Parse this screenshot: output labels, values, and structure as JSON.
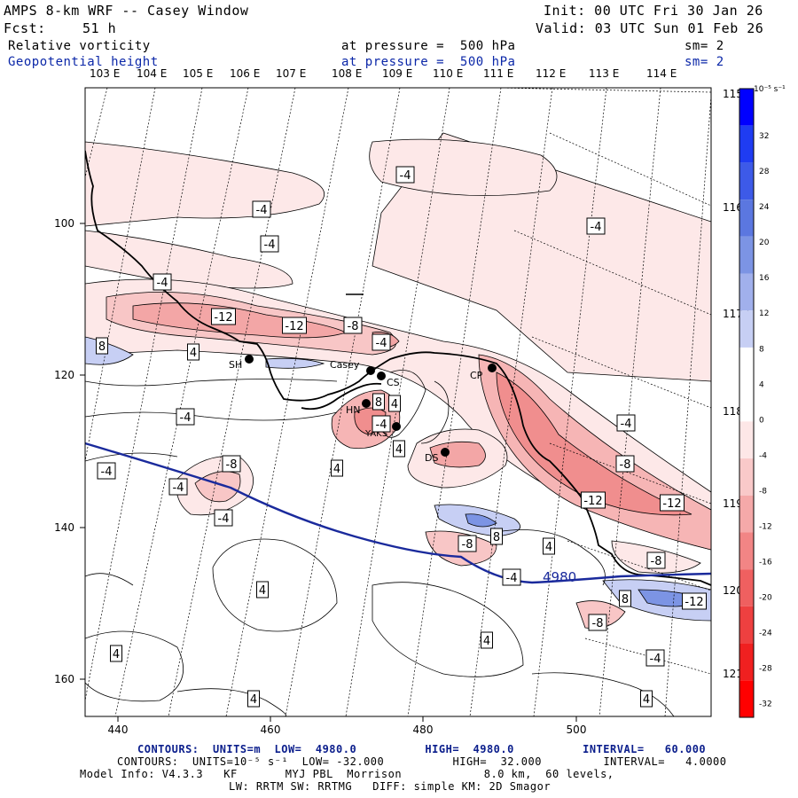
{
  "header": {
    "title": "AMPS 8-km WRF -- Casey Window",
    "fcst_label": "Fcst:",
    "fcst_value": "51 h",
    "init": "Init: 00 UTC Fri 30 Jan 26",
    "valid": "Valid: 03 UTC Sun 01 Feb 26",
    "field1": "Relative vorticity",
    "field1_level": "at pressure =  500 hPa",
    "field1_sm": "sm= 2",
    "field2": "Geopotential height",
    "field2_level": "at pressure =  500 hPa",
    "field2_sm": "sm= 2"
  },
  "lon_labels_top": [
    "103 E",
    "104 E",
    "105 E",
    "106 E",
    "107 E",
    "108 E",
    "109 E",
    "110 E",
    "111 E",
    "112 E",
    "113 E",
    "114 E"
  ],
  "lon_labels_right": [
    "115 E",
    "116 E",
    "117 E",
    "118 E",
    "119 E",
    "120 E",
    "121 E"
  ],
  "grid_x_ticks": [
    "440",
    "460",
    "480",
    "500"
  ],
  "grid_y_ticks": [
    "100",
    "120",
    "140",
    "160"
  ],
  "stations": [
    {
      "label": "SH"
    },
    {
      "label": "Casey"
    },
    {
      "label": "CS"
    },
    {
      "label": "CP"
    },
    {
      "label": "HN"
    },
    {
      "label": "YAKS"
    },
    {
      "label": "DS"
    }
  ],
  "contour_labels": [
    "-4",
    "-4",
    "-4",
    "-4",
    "-4",
    "-12",
    "-12",
    "-8",
    "8",
    "4",
    "-4",
    "-4",
    "8",
    "4",
    "-8",
    "-4",
    "-4",
    "4",
    "-4",
    "-8",
    "-12",
    "-12",
    "-4",
    "8",
    "-8",
    "4",
    "-4",
    "8",
    "-8",
    "-8",
    "-12",
    "4",
    "4",
    "4",
    "4",
    "-4",
    "4",
    "-4",
    "4"
  ],
  "height_contour_label": "4980",
  "colorbar": {
    "units": "10⁻⁵ s⁻¹",
    "levels": [
      "32",
      "28",
      "24",
      "20",
      "16",
      "12",
      "8",
      "4",
      "0",
      "-4",
      "-8",
      "-12",
      "-16",
      "-20",
      "-24",
      "-28",
      "-32"
    ],
    "colors": [
      "#0000ff",
      "#1f3cf2",
      "#3d5ae8",
      "#5b77e0",
      "#7c94e4",
      "#a1b0ec",
      "#c7cff4",
      "#ffffff",
      "#ffffff",
      "#fde7e7",
      "#f9c9c9",
      "#f5a9a9",
      "#f28585",
      "#ef6060",
      "#ee4040",
      "#f02020",
      "#ff0000"
    ]
  },
  "footer": {
    "contours1": "CONTOURS:  UNITS=m  LOW=  4980.0          HIGH=  4980.0          INTERVAL=   60.000",
    "contours2": "CONTOURS:  UNITS=10⁻⁵ s⁻¹  LOW= -32.000          HIGH=  32.000         INTERVAL=   4.0000",
    "model1": "Model Info: V4.3.3   KF       MYJ PBL  Morrison            8.0 km,  60 levels,",
    "model2": "LW: RRTM SW: RRTMG   DIFF: simple KM: 2D Smagor"
  },
  "colors": {
    "height_contour": "#1a2a9c",
    "footer_line1": "#0b1e8c",
    "header_blue": "#0b27a8"
  }
}
